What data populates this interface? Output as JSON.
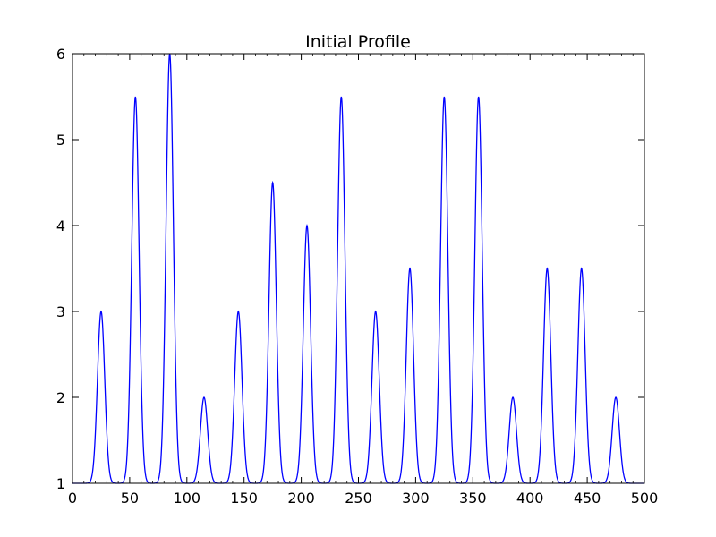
{
  "chart_data": {
    "type": "line",
    "title": "Initial Profile",
    "xlabel": "",
    "ylabel": "",
    "xlim": [
      0,
      500
    ],
    "ylim": [
      1,
      6
    ],
    "xticks": [
      0,
      50,
      100,
      150,
      200,
      250,
      300,
      350,
      400,
      450,
      500
    ],
    "yticks": [
      1,
      2,
      3,
      4,
      5,
      6
    ],
    "grid": false,
    "legend": "none",
    "series": [
      {
        "color": "#0000ff",
        "baseline": 1,
        "peaks": [
          {
            "x": 25,
            "y": 3.0
          },
          {
            "x": 55,
            "y": 5.5
          },
          {
            "x": 85,
            "y": 6.0
          },
          {
            "x": 115,
            "y": 2.0
          },
          {
            "x": 145,
            "y": 3.0
          },
          {
            "x": 175,
            "y": 4.5
          },
          {
            "x": 205,
            "y": 4.0
          },
          {
            "x": 235,
            "y": 5.5
          },
          {
            "x": 265,
            "y": 3.0
          },
          {
            "x": 295,
            "y": 3.5
          },
          {
            "x": 325,
            "y": 5.5
          },
          {
            "x": 355,
            "y": 5.5
          },
          {
            "x": 385,
            "y": 2.0
          },
          {
            "x": 415,
            "y": 3.5
          },
          {
            "x": 445,
            "y": 3.5
          },
          {
            "x": 475,
            "y": 2.0
          }
        ]
      }
    ]
  }
}
